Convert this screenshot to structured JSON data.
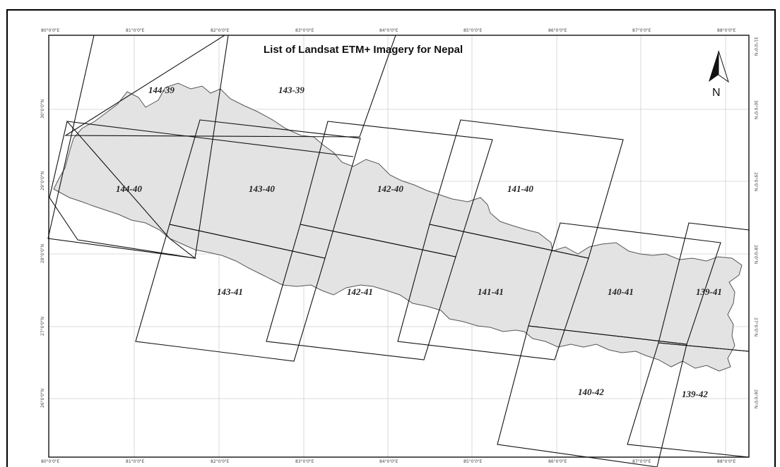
{
  "title": "List of Landsat ETM+ Imagery for Nepal",
  "north_label": "N",
  "longitude_ticks": [
    "80°0'0\"E",
    "81°0'0\"E",
    "82°0'0\"E",
    "83°0'0\"E",
    "84°0'0\"E",
    "85°0'0\"E",
    "86°0'0\"E",
    "87°0'0\"E",
    "88°0'0\"E"
  ],
  "latitude_ticks": [
    "31°0'0\"N",
    "30°0'0\"N",
    "29°0'0\"N",
    "28°0'0\"N",
    "27°0'0\"N",
    "26°0'0\"N"
  ],
  "scenes": [
    "144-39",
    "143-39",
    "144-40",
    "143-40",
    "142-40",
    "141-40",
    "143-41",
    "142-41",
    "141-41",
    "140-41",
    "139-41",
    "140-42",
    "139-42"
  ],
  "colors": {
    "country_fill": "#e3e3e3",
    "country_stroke": "#555555",
    "grid": "#cfcfcf",
    "tile_outline": "#111111"
  }
}
